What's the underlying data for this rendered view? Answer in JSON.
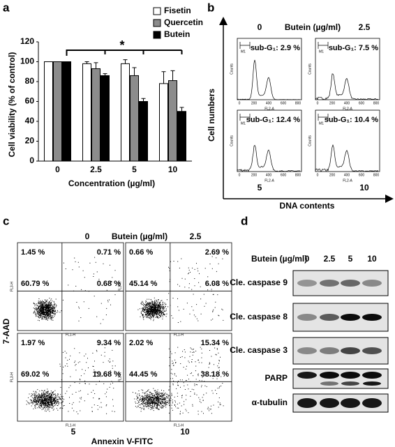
{
  "chart_data": {
    "type": "bar",
    "panel_label": "a",
    "categories": [
      "0",
      "2.5",
      "5",
      "10"
    ],
    "series": [
      {
        "name": "Fisetin",
        "color": "#ffffff",
        "values": [
          100,
          98,
          98,
          78
        ],
        "errors": [
          0,
          2,
          4,
          12
        ]
      },
      {
        "name": "Quercetin",
        "color": "#8c8c8c",
        "values": [
          100,
          93,
          86,
          81
        ],
        "errors": [
          0,
          6,
          8,
          10
        ]
      },
      {
        "name": "Butein",
        "color": "#000000",
        "values": [
          100,
          86,
          60,
          50
        ],
        "errors": [
          0,
          2,
          3,
          4
        ]
      }
    ],
    "ylim": [
      0,
      120
    ],
    "yticks": [
      0,
      20,
      40,
      60,
      80,
      100,
      120
    ],
    "ylabel": "Cell viability (% of control)",
    "xlabel": "Concentration (µg/ml)",
    "annotation": "*"
  },
  "panel_b": {
    "label": "b",
    "title": "Butein (µg/ml)",
    "ylabel": "Cell numbers",
    "xlabel": "DNA contents",
    "plot_ylabel": "Counts",
    "plot_xlabel": "FL2-A",
    "marker": "M1",
    "plot_xticks": [
      "0",
      "200",
      "400",
      "600",
      "800"
    ],
    "plots": [
      {
        "dose": "0",
        "label": "sub-G₁: 2.9 %"
      },
      {
        "dose": "2.5",
        "label": "sub-G₁: 7.5 %"
      },
      {
        "dose": "5",
        "label": "sub-G₁: 12.4 %"
      },
      {
        "dose": "10",
        "label": "sub-G₁: 10.4 %"
      }
    ]
  },
  "panel_c": {
    "label": "c",
    "title": "Butein (µg/ml)",
    "ylabel": "7-AAD",
    "xlabel": "Annexin V-FITC",
    "plot_ylabel": "FL3-H",
    "plot_xlabel": "FL1-H",
    "plots": [
      {
        "dose": "0",
        "quadrants": [
          "1.45 %",
          "0.71 %",
          "60.79 %",
          "0.68 %"
        ]
      },
      {
        "dose": "2.5",
        "quadrants": [
          "0.66 %",
          "2.69 %",
          "45.14 %",
          "6.08 %"
        ]
      },
      {
        "dose": "5",
        "quadrants": [
          "1.97 %",
          "9.34 %",
          "69.02 %",
          "19.68 %"
        ]
      },
      {
        "dose": "10",
        "quadrants": [
          "2.02 %",
          "15.34 %",
          "44.45 %",
          "38.18 %"
        ]
      }
    ]
  },
  "panel_d": {
    "label": "d",
    "title": "Butein (µg/ml)",
    "lanes": [
      "0",
      "2.5",
      "5",
      "10"
    ],
    "rows": [
      "Cle. caspase 9",
      "Cle. caspase 8",
      "Cle. caspase 3",
      "PARP",
      "α-tubulin"
    ]
  }
}
